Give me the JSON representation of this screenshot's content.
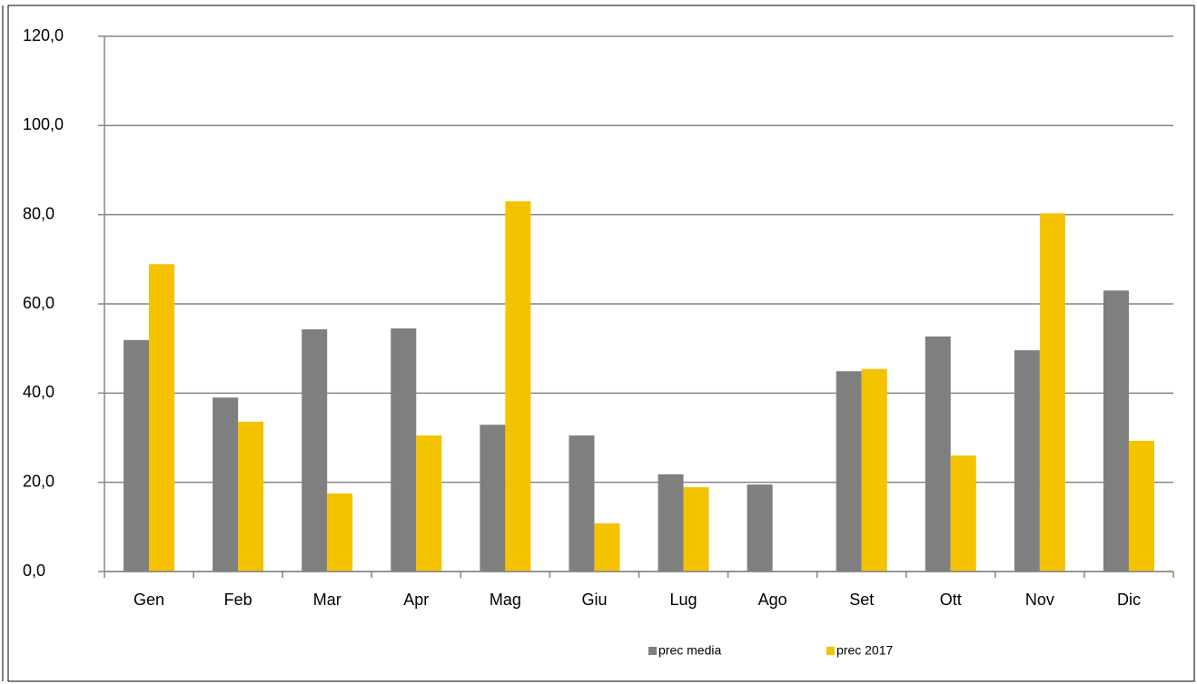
{
  "chart_data": {
    "type": "bar",
    "categories": [
      "Gen",
      "Feb",
      "Mar",
      "Apr",
      "Mag",
      "Giu",
      "Lug",
      "Ago",
      "Set",
      "Ott",
      "Nov",
      "Dic"
    ],
    "series": [
      {
        "name": "prec media",
        "color": "#7f7f7f",
        "values": [
          51.9,
          39.0,
          54.3,
          54.5,
          32.9,
          30.5,
          21.8,
          19.5,
          44.9,
          52.7,
          49.6,
          63.0
        ]
      },
      {
        "name": "prec 2017",
        "color": "#f5c200",
        "values": [
          68.9,
          33.6,
          17.5,
          30.5,
          83.0,
          10.8,
          18.9,
          0,
          45.4,
          26.0,
          80.3,
          29.3
        ]
      }
    ],
    "ylim": [
      0,
      120
    ],
    "yticks": [
      {
        "value": 0,
        "label": "0,0"
      },
      {
        "value": 20,
        "label": "20,0"
      },
      {
        "value": 40,
        "label": "40,0"
      },
      {
        "value": 60,
        "label": "60,0"
      },
      {
        "value": 80,
        "label": "80,0"
      },
      {
        "value": 100,
        "label": "100,0"
      },
      {
        "value": 120,
        "label": "120,0"
      }
    ],
    "grid": true,
    "legend": "bottom"
  }
}
